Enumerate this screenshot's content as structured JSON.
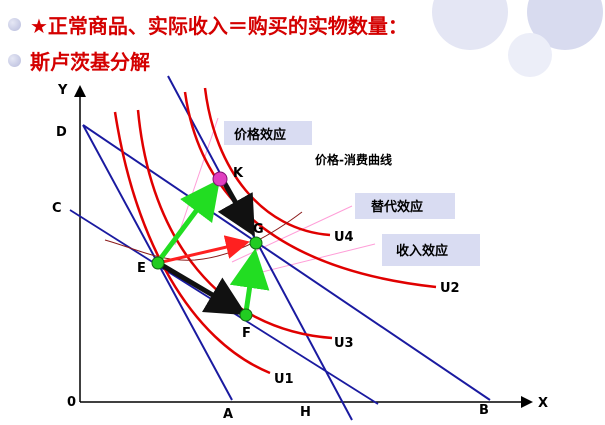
{
  "header": {
    "line1": "★正常商品、实际收入＝购买的实物数量：",
    "line2": "斯卢茨基分解"
  },
  "boxes": {
    "price_effect": "价格效应",
    "substitution_effect": "替代效应",
    "income_effect": "收入效应"
  },
  "curve_label": "价格-消费曲线",
  "axes": {
    "y": "Y",
    "x": "X",
    "origin": "0"
  },
  "intercepts": {
    "D": "D",
    "C": "C",
    "A": "A",
    "H": "H",
    "B": "B"
  },
  "points": {
    "E": "E",
    "K": "K",
    "G": "G",
    "F": "F"
  },
  "curves": {
    "U1": "U1",
    "U2": "U2",
    "U3": "U3",
    "U4": "U4"
  },
  "colors": {
    "indifference": "#e00000",
    "budget": "#1a1aa0",
    "green_arrow": "#22dd22",
    "black_arrow": "#111111",
    "red_arrow": "#ff2020",
    "point_fill": "#22cc22",
    "k_point": "#e040c0"
  }
}
